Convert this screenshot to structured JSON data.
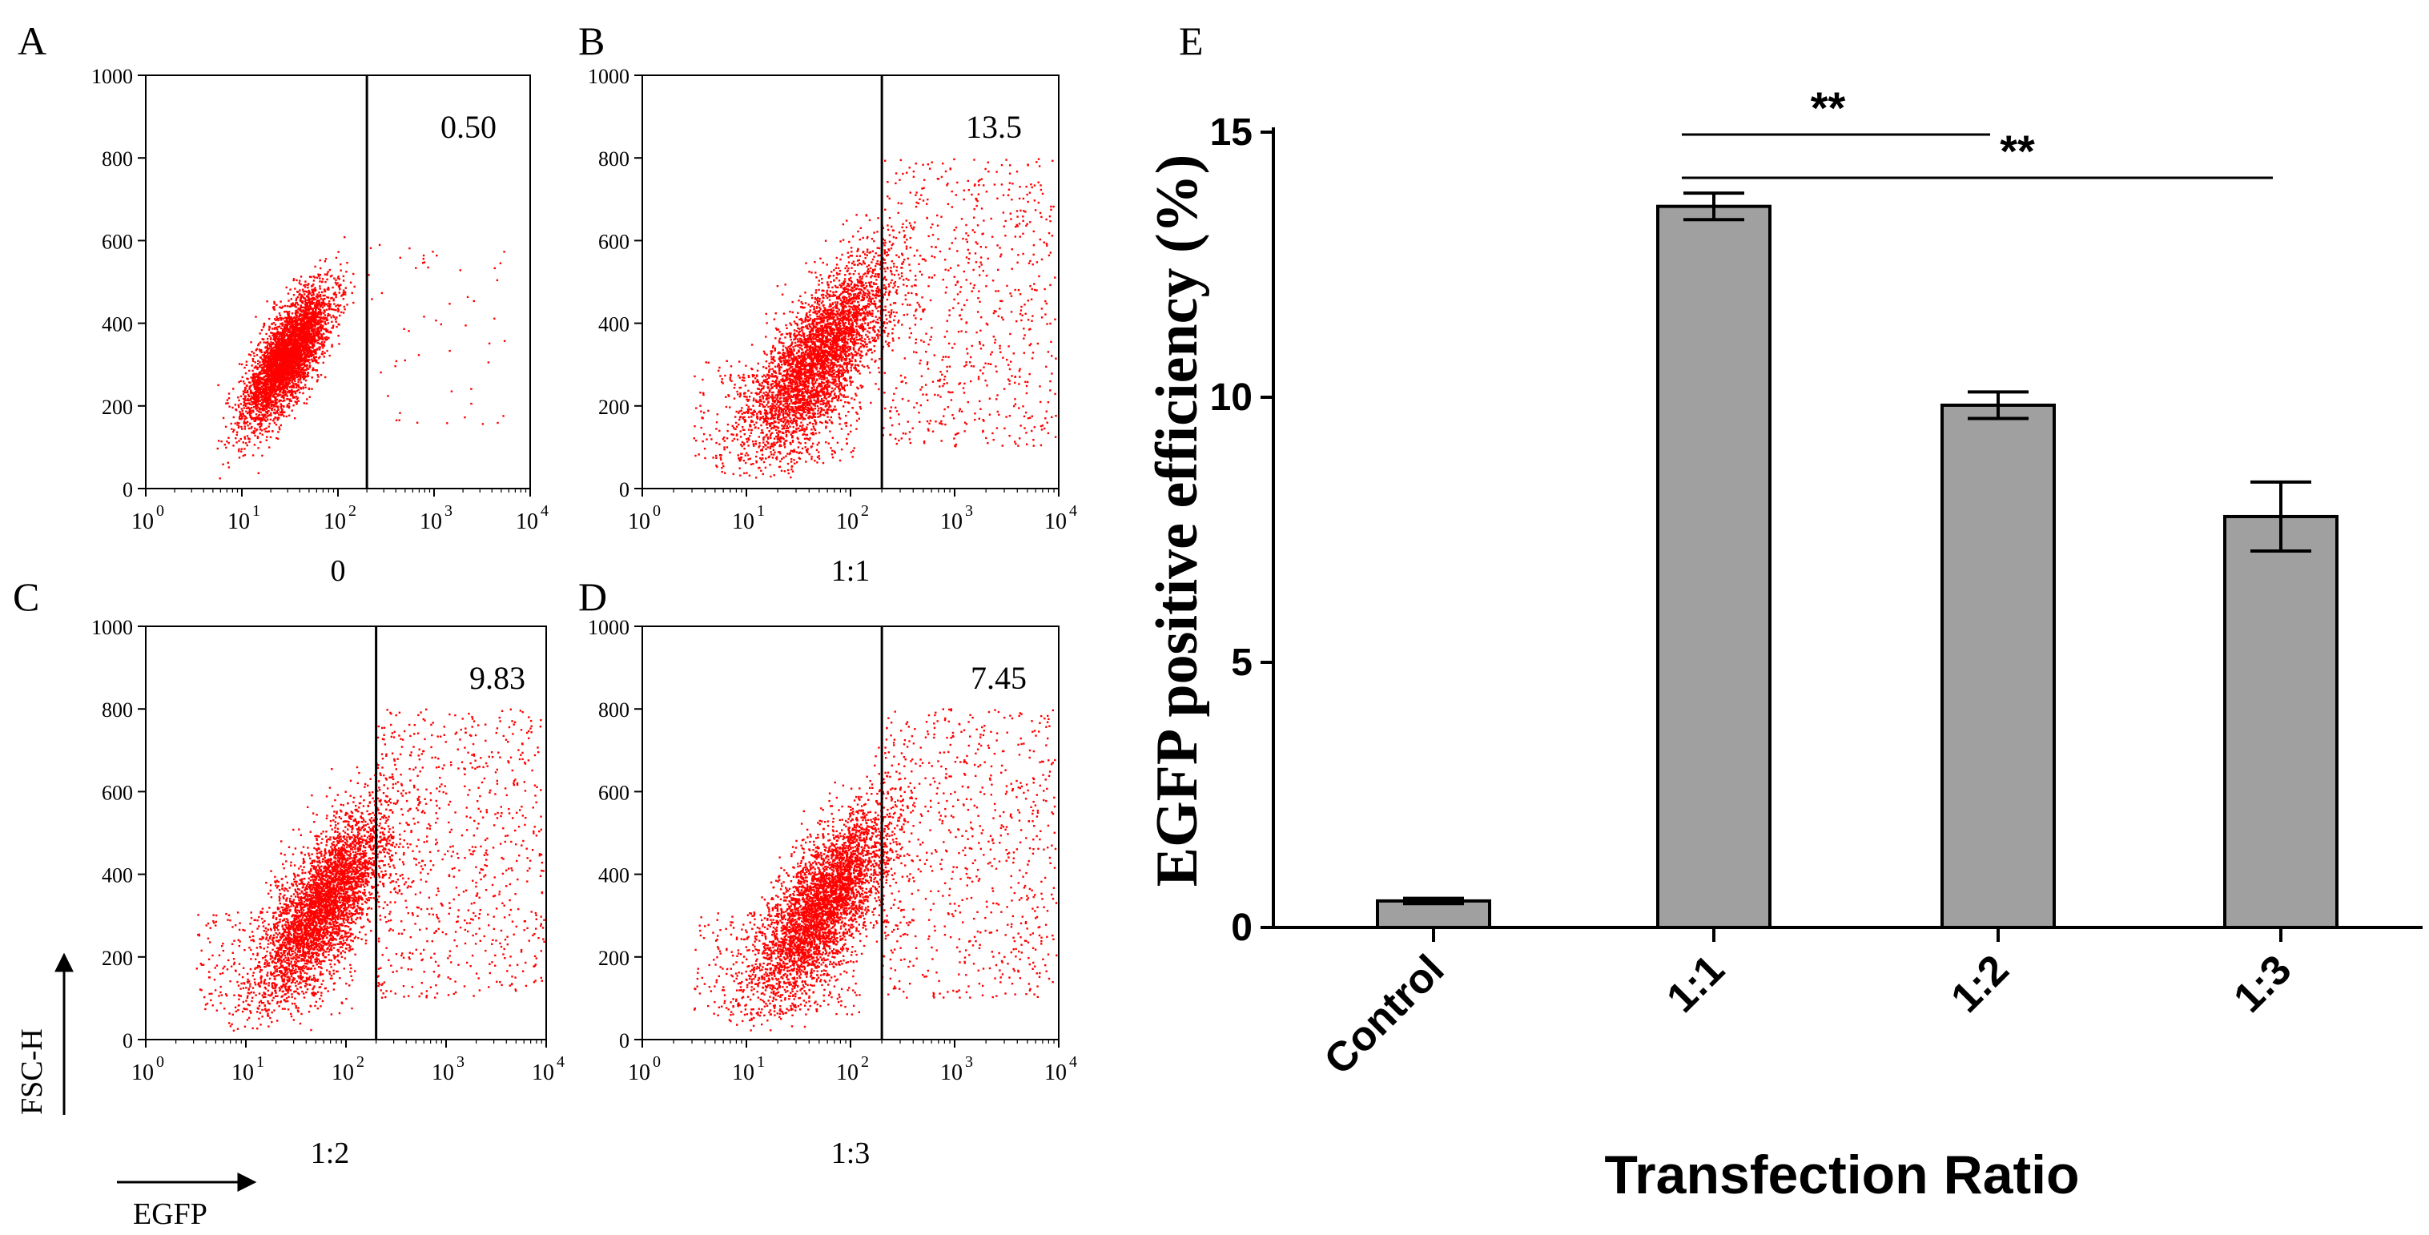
{
  "figure": {
    "axis_labels": {
      "fsc": "FSC-H",
      "egfp": "EGFP"
    },
    "dot_color": "#ff0000"
  },
  "chart_data": [
    {
      "type": "scatter",
      "panel": "A",
      "condition": "0",
      "gate_percent": "0.50",
      "x_scale": "log",
      "xlim": [
        1,
        10000
      ],
      "ylim": [
        0,
        1000
      ],
      "yticks": [
        "0",
        "200",
        "400",
        "600",
        "800",
        "1000"
      ],
      "xticks": [
        "10",
        "10",
        "10",
        "10",
        "10"
      ],
      "xtick_exps": [
        "0",
        "1",
        "2",
        "3",
        "4"
      ],
      "gate_x": 200,
      "cluster": {
        "x_center": 30,
        "y_center": 320,
        "n_points": 4200,
        "spread": "tight"
      }
    },
    {
      "type": "scatter",
      "panel": "B",
      "condition": "1:1",
      "gate_percent": "13.5",
      "x_scale": "log",
      "xlim": [
        1,
        10000
      ],
      "ylim": [
        0,
        1000
      ],
      "yticks": [
        "0",
        "200",
        "400",
        "600",
        "800",
        "1000"
      ],
      "xticks": [
        "10",
        "10",
        "10",
        "10",
        "10"
      ],
      "xtick_exps": [
        "0",
        "1",
        "2",
        "3",
        "4"
      ],
      "gate_x": 200,
      "cluster": {
        "x_center": 50,
        "y_center": 320,
        "n_points": 5000,
        "spread": "wide"
      }
    },
    {
      "type": "scatter",
      "panel": "C",
      "condition": "1:2",
      "gate_percent": "9.83",
      "x_scale": "log",
      "xlim": [
        1,
        10000
      ],
      "ylim": [
        0,
        1000
      ],
      "yticks": [
        "0",
        "200",
        "400",
        "600",
        "800",
        "1000"
      ],
      "xticks": [
        "10",
        "10",
        "10",
        "10",
        "10"
      ],
      "xtick_exps": [
        "0",
        "1",
        "2",
        "3",
        "4"
      ],
      "gate_x": 200,
      "cluster": {
        "x_center": 60,
        "y_center": 330,
        "n_points": 5000,
        "spread": "wide"
      }
    },
    {
      "type": "scatter",
      "panel": "D",
      "condition": "1:3",
      "gate_percent": "7.45",
      "x_scale": "log",
      "xlim": [
        1,
        10000
      ],
      "ylim": [
        0,
        1000
      ],
      "yticks": [
        "0",
        "200",
        "400",
        "600",
        "800",
        "1000"
      ],
      "xticks": [
        "10",
        "10",
        "10",
        "10",
        "10"
      ],
      "xtick_exps": [
        "0",
        "1",
        "2",
        "3",
        "4"
      ],
      "gate_x": 200,
      "cluster": {
        "x_center": 55,
        "y_center": 330,
        "n_points": 5000,
        "spread": "wide"
      }
    },
    {
      "type": "bar",
      "panel": "E",
      "categories": [
        "Control",
        "1:1",
        "1:2",
        "1:3"
      ],
      "values": [
        0.5,
        13.6,
        9.85,
        7.75
      ],
      "errors": [
        0.05,
        0.25,
        0.25,
        0.65
      ],
      "ylabel": "EGFP positive efficiency (%)",
      "xlabel": "Transfection Ratio",
      "ylim": [
        0,
        15
      ],
      "yticks": [
        "0",
        "5",
        "10",
        "15"
      ],
      "bar_color": "#a0a0a0",
      "significance": [
        {
          "from": "1:1",
          "to": "1:2",
          "label": "**"
        },
        {
          "from": "1:1",
          "to": "1:3",
          "label": "**"
        }
      ]
    }
  ]
}
